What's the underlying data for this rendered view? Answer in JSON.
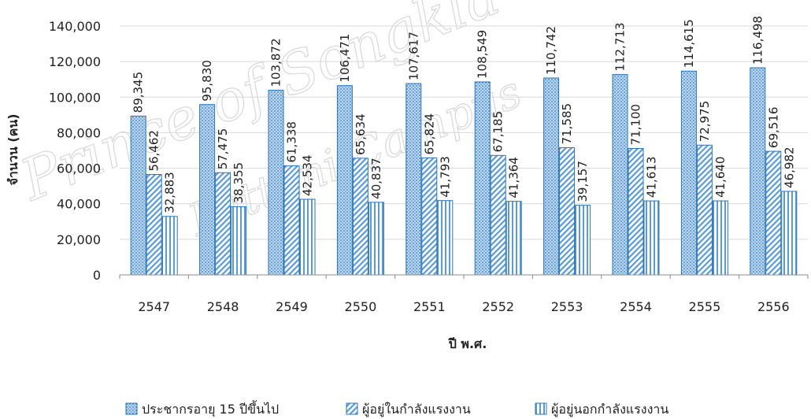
{
  "chart_data": {
    "type": "bar",
    "xlabel": "ปี พ.ศ.",
    "ylabel": "จำนวน (คน)",
    "ylim": [
      0,
      140000
    ],
    "yticks": [
      "0",
      "20,000",
      "40,000",
      "60,000",
      "80,000",
      "100,000",
      "120,000",
      "140,000"
    ],
    "categories": [
      "2547",
      "2548",
      "2549",
      "2550",
      "2551",
      "2552",
      "2553",
      "2554",
      "2555",
      "2556"
    ],
    "series": [
      {
        "name": "ประชากรอายุ 15 ปีขึ้นไป",
        "values": [
          89345,
          95830,
          103872,
          106471,
          107617,
          108549,
          110742,
          112713,
          114615,
          116498
        ],
        "labels": [
          "89,345",
          "95,830",
          "103,872",
          "106,471",
          "107,617",
          "108,549",
          "110,742",
          "112,713",
          "114,615",
          "116,498"
        ]
      },
      {
        "name": "ผู้อยู่ในกำลังแรงงาน",
        "values": [
          56462,
          57475,
          61338,
          65634,
          65824,
          67185,
          71585,
          71100,
          72975,
          69516
        ],
        "labels": [
          "56,462",
          "57,475",
          "61,338",
          "65,634",
          "65,824",
          "67,185",
          "71,585",
          "71,100",
          "72,975",
          "69,516"
        ]
      },
      {
        "name": "ผู้อยู่นอกกำลังแรงงาน",
        "values": [
          32883,
          38355,
          42534,
          40837,
          41793,
          41364,
          39157,
          41613,
          41640,
          46982
        ],
        "labels": [
          "32,883",
          "38,355",
          "42,534",
          "40,837",
          "41,793",
          "41,364",
          "39,157",
          "41,613",
          "41,640",
          "46,982"
        ]
      }
    ],
    "grid": true,
    "legend": "bottom",
    "watermark": [
      "Prince of Songkla University",
      "Pattani Campus"
    ],
    "colors": {
      "fill": "#9dc3e6",
      "stroke": "#2e75b6",
      "grid": "#d9d9d9"
    }
  }
}
